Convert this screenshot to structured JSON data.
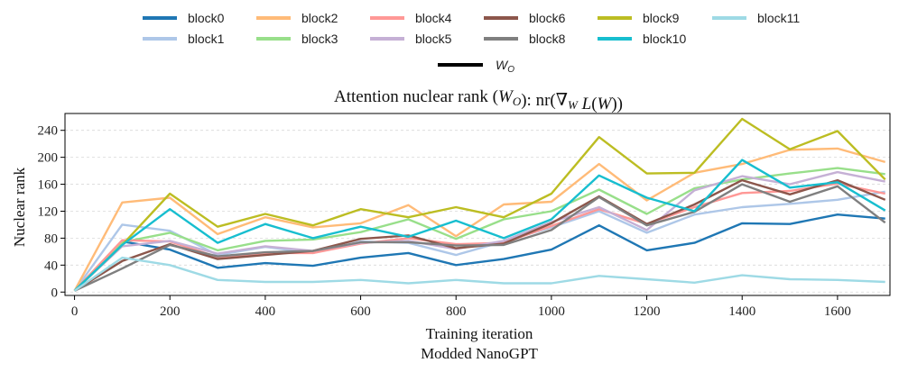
{
  "chart_data": {
    "type": "line",
    "title": "Attention nuclear rank (W_O): nr(∇_W L(W))",
    "xlabel": "Training iteration",
    "subtitle": "Modded NanoGPT",
    "ylabel": "Nuclear rank",
    "xlim": [
      -20,
      1710
    ],
    "ylim": [
      -5,
      265
    ],
    "xticks": [
      0,
      200,
      400,
      600,
      800,
      1000,
      1200,
      1400,
      1600
    ],
    "yticks": [
      0,
      40,
      80,
      120,
      160,
      200,
      240
    ],
    "grid": "horizontal dashed",
    "legend_position": "top-center",
    "matrix_legend": "W_O",
    "x": [
      0,
      100,
      200,
      300,
      400,
      500,
      600,
      700,
      800,
      900,
      1000,
      1100,
      1200,
      1300,
      1400,
      1500,
      1600,
      1700
    ],
    "series": [
      {
        "name": "block0",
        "color": "#1f77b4",
        "values": [
          2,
          75,
          63,
          36,
          43,
          39,
          51,
          58,
          40,
          49,
          63,
          99,
          62,
          73,
          102,
          101,
          115,
          109
        ]
      },
      {
        "name": "block1",
        "color": "#aec7e8",
        "values": [
          2,
          100,
          91,
          55,
          67,
          58,
          75,
          73,
          55,
          75,
          96,
          120,
          88,
          115,
          126,
          131,
          137,
          149
        ]
      },
      {
        "name": "block2",
        "color": "#ffbb78",
        "values": [
          2,
          133,
          140,
          86,
          111,
          96,
          102,
          129,
          83,
          130,
          134,
          190,
          136,
          177,
          190,
          211,
          213,
          193
        ]
      },
      {
        "name": "block3",
        "color": "#98df8a",
        "values": [
          2,
          74,
          88,
          62,
          76,
          78,
          89,
          108,
          79,
          108,
          120,
          152,
          116,
          154,
          167,
          176,
          184,
          175
        ]
      },
      {
        "name": "block4",
        "color": "#ff9896",
        "values": [
          2,
          77,
          75,
          52,
          58,
          58,
          72,
          80,
          71,
          73,
          98,
          123,
          101,
          126,
          147,
          150,
          161,
          146
        ]
      },
      {
        "name": "block5",
        "color": "#c5b0d5",
        "values": [
          2,
          68,
          76,
          57,
          68,
          61,
          73,
          76,
          64,
          76,
          104,
          126,
          92,
          151,
          172,
          160,
          178,
          164
        ]
      },
      {
        "name": "block6",
        "color": "#8c564b",
        "values": [
          2,
          46,
          71,
          49,
          55,
          61,
          79,
          84,
          65,
          72,
          102,
          142,
          101,
          130,
          166,
          145,
          166,
          137
        ]
      },
      {
        "name": "block8",
        "color": "#7f7f7f",
        "values": [
          2,
          35,
          70,
          53,
          59,
          61,
          74,
          74,
          69,
          70,
          92,
          141,
          99,
          119,
          160,
          134,
          157,
          103
        ]
      },
      {
        "name": "block9",
        "color": "#bcbd22",
        "values": [
          2,
          70,
          146,
          97,
          116,
          99,
          123,
          111,
          126,
          111,
          146,
          230,
          176,
          177,
          257,
          212,
          239,
          167
        ]
      },
      {
        "name": "block10",
        "color": "#17becf",
        "values": [
          2,
          70,
          123,
          73,
          101,
          80,
          97,
          82,
          106,
          80,
          108,
          173,
          140,
          120,
          196,
          155,
          163,
          121
        ]
      },
      {
        "name": "block11",
        "color": "#9edae5",
        "values": [
          2,
          51,
          40,
          18,
          15,
          15,
          18,
          13,
          18,
          13,
          13,
          24,
          19,
          14,
          25,
          19,
          18,
          15
        ]
      }
    ]
  }
}
